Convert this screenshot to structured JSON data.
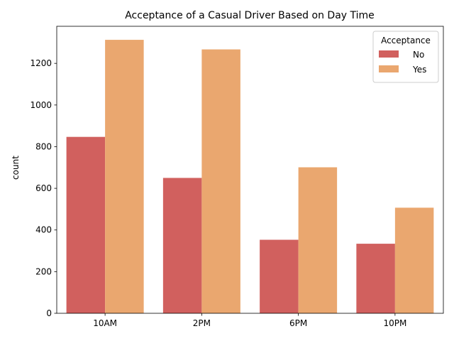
{
  "chart_data": {
    "type": "bar",
    "title": "Acceptance of a Casual Driver Based on Day Time",
    "xlabel": "",
    "ylabel": "count",
    "categories": [
      "10AM",
      "2PM",
      "6PM",
      "10PM"
    ],
    "series": [
      {
        "name": "No",
        "color": "#d1605e",
        "values": [
          847,
          650,
          353,
          334
        ]
      },
      {
        "name": "Yes",
        "color": "#eaa76f",
        "values": [
          1313,
          1267,
          701,
          507
        ]
      }
    ],
    "ylim": [
      0,
      1378
    ],
    "yticks": [
      0,
      200,
      400,
      600,
      800,
      1000,
      1200
    ],
    "grid": false,
    "legend": {
      "title": "Acceptance",
      "placement": "top-right"
    }
  }
}
